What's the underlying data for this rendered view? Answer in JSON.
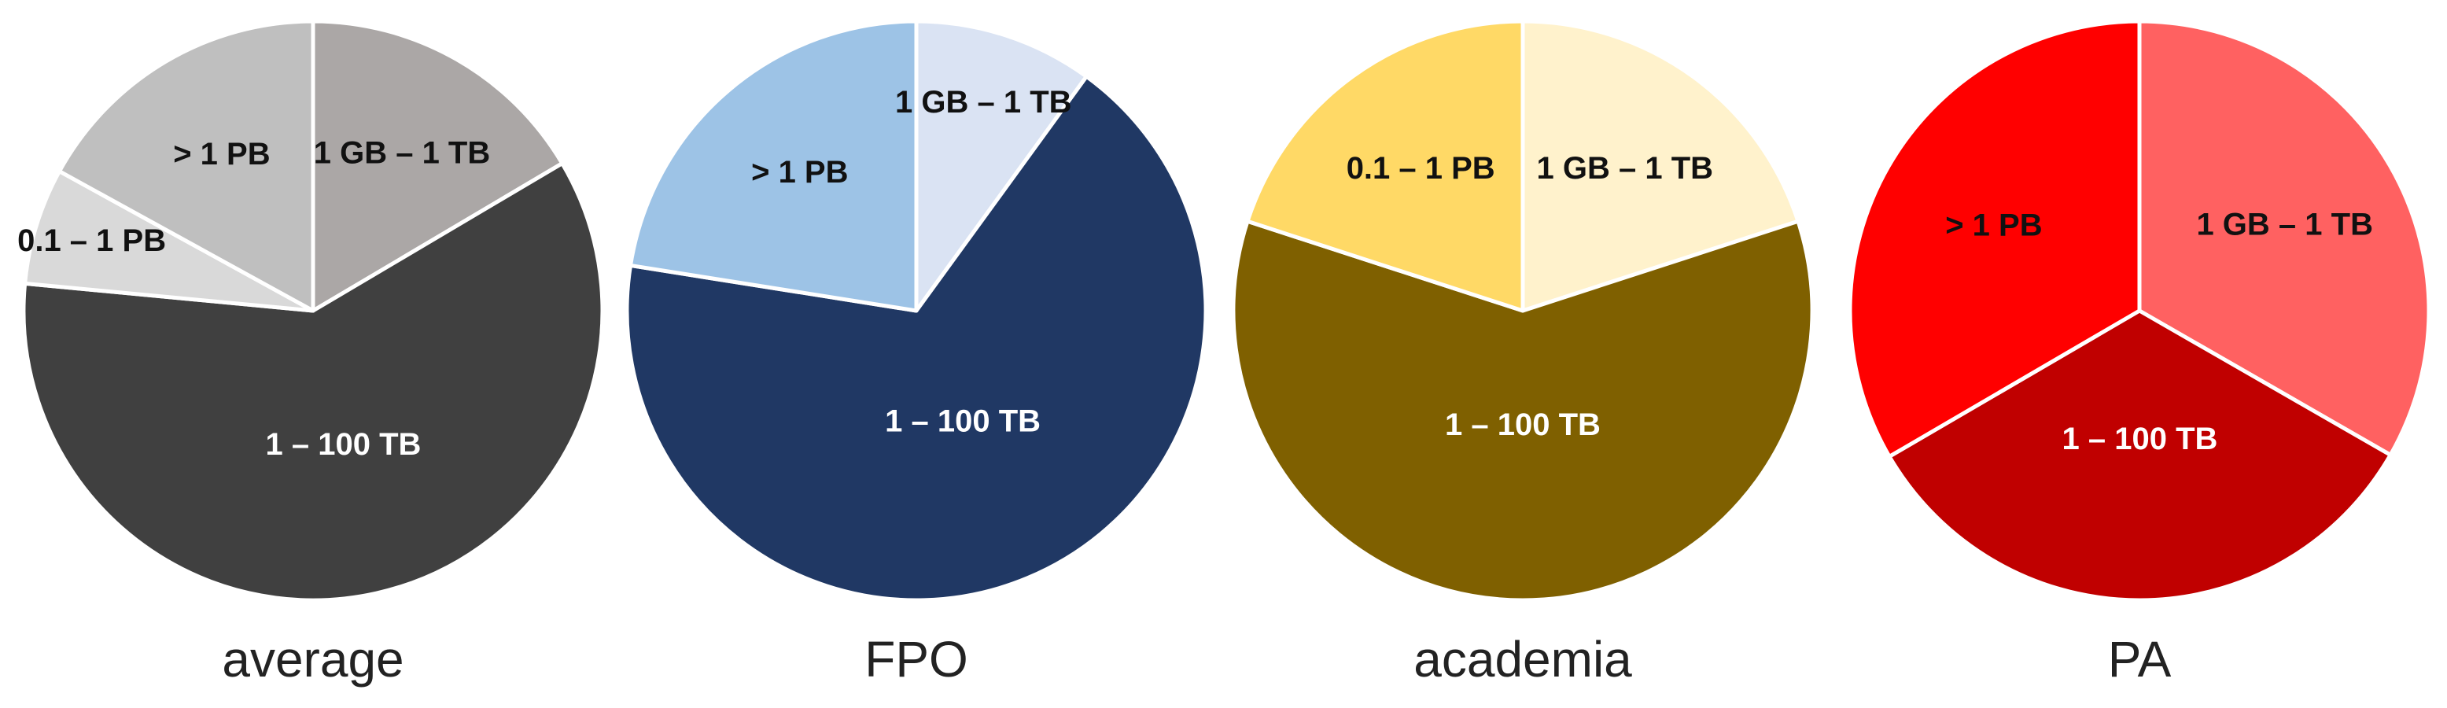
{
  "chart_data": [
    {
      "type": "pie",
      "title": "average",
      "start": "12 o'clock",
      "direction": "clockwise",
      "slices": [
        {
          "label": "1 GB – 1 TB",
          "value": 16.5,
          "color": "#ABA7A6",
          "text_color": "#111111"
        },
        {
          "label": "1 – 100 TB",
          "value": 60.0,
          "color": "#404040",
          "text_color": "#FFFFFF"
        },
        {
          "label": "0.1 – 1 PB",
          "value": 6.5,
          "color": "#D9D9D9",
          "text_color": "#111111"
        },
        {
          "label": "> 1 PB",
          "value": 17.0,
          "color": "#BFBFBF",
          "text_color": "#111111"
        }
      ]
    },
    {
      "type": "pie",
      "title": "FPO",
      "start": "12 o'clock",
      "direction": "clockwise",
      "slices": [
        {
          "label": "1 GB – 1 TB",
          "value": 10.0,
          "color": "#DAE3F3",
          "text_color": "#111111"
        },
        {
          "label": "1 – 100 TB",
          "value": 67.5,
          "color": "#203864",
          "text_color": "#FFFFFF"
        },
        {
          "label": "> 1 PB",
          "value": 22.5,
          "color": "#9DC3E6",
          "text_color": "#111111"
        }
      ]
    },
    {
      "type": "pie",
      "title": "academia",
      "start": "12 o'clock",
      "direction": "clockwise",
      "slices": [
        {
          "label": "1 GB – 1 TB",
          "value": 20.0,
          "color": "#FFF2CC",
          "text_color": "#111111"
        },
        {
          "label": "1 – 100 TB",
          "value": 60.0,
          "color": "#7F6000",
          "text_color": "#FFFFFF"
        },
        {
          "label": "0.1 – 1 PB",
          "value": 20.0,
          "color": "#FFD966",
          "text_color": "#111111"
        }
      ]
    },
    {
      "type": "pie",
      "title": "PA",
      "start": "12 o'clock",
      "direction": "clockwise",
      "slices": [
        {
          "label": "1 GB – 1 TB",
          "value": 33.3,
          "color": "#FF6161",
          "text_color": "#111111"
        },
        {
          "label": "1 – 100 TB",
          "value": 33.3,
          "color": "#C00000",
          "text_color": "#FFFFFF"
        },
        {
          "label": "> 1 PB",
          "value": 33.4,
          "color": "#FF0000",
          "text_color": "#111111"
        }
      ]
    }
  ]
}
